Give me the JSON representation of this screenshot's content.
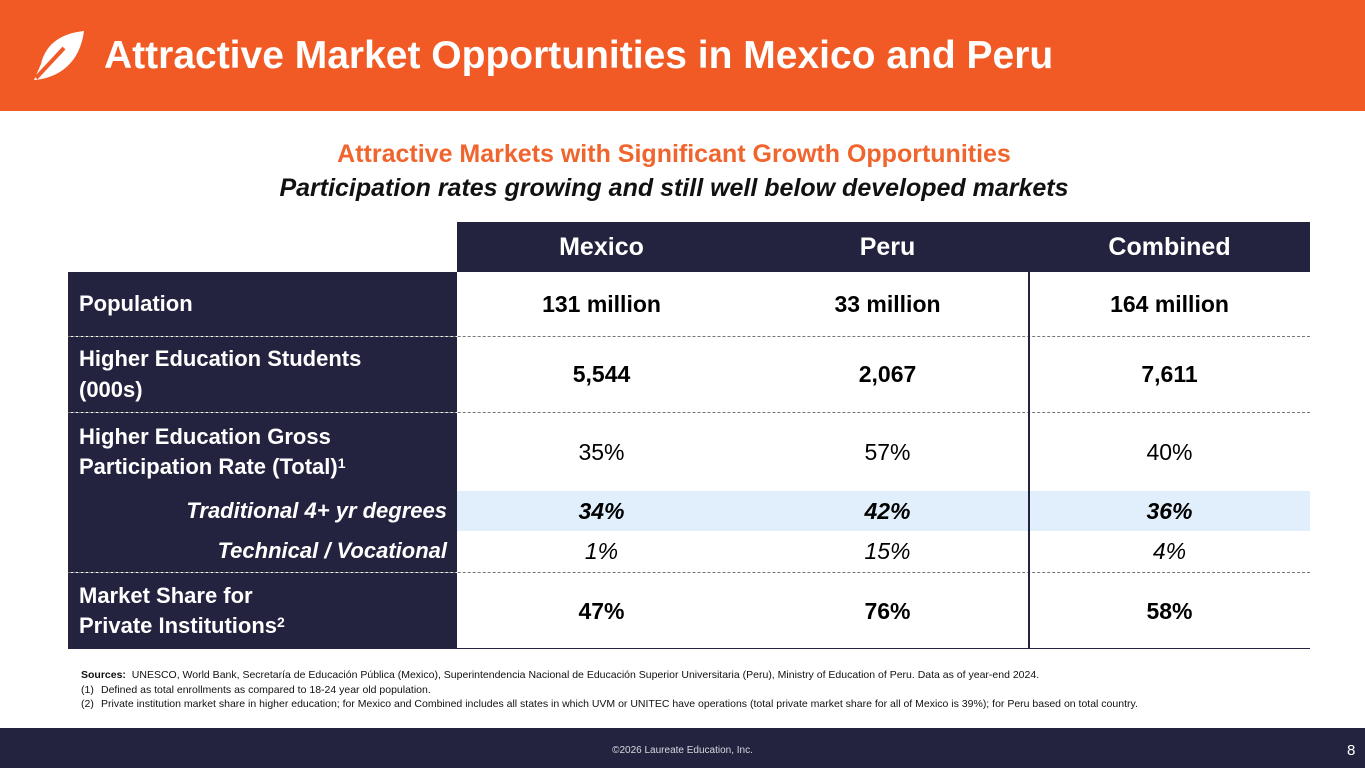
{
  "header": {
    "title": "Attractive Market Opportunities in Mexico and Peru"
  },
  "subtitle": {
    "line1": "Attractive Markets with Significant Growth Opportunities",
    "line2": "Participation rates growing and still well below developed markets"
  },
  "table": {
    "columns": [
      "Mexico",
      "Peru",
      "Combined"
    ],
    "rows": [
      {
        "label_line1": "Population",
        "values": [
          "131 million",
          "33 million",
          "164 million"
        ]
      },
      {
        "label_line1": "Higher Education Students",
        "label_line2": "(000s)",
        "values": [
          "5,544",
          "2,067",
          "7,611"
        ]
      },
      {
        "label_line1": "Higher Education Gross",
        "label_line2": "Participation Rate (Total)",
        "label_sup": "1",
        "values": [
          "35%",
          "57%",
          "40%"
        ]
      },
      {
        "label_line1": "Traditional 4+ yr degrees",
        "values": [
          "34%",
          "42%",
          "36%"
        ]
      },
      {
        "label_line1": "Technical / Vocational",
        "values": [
          "1%",
          "15%",
          "4%"
        ]
      },
      {
        "label_line1": "Market Share for",
        "label_line2": "Private Institutions",
        "label_sup": "2",
        "values": [
          "47%",
          "76%",
          "58%"
        ]
      }
    ]
  },
  "notes": {
    "sources_label": "Sources:",
    "sources_text": "UNESCO, World Bank, Secretaría de Educación Pública (Mexico), Superintendencia Nacional de Educación Superior Universitaria (Peru), Ministry of Education of Peru.  Data as of year-end 2024.",
    "n1_num": "(1)",
    "n1_text": "Defined as total enrollments as compared to 18-24 year old population.",
    "n2_num": "(2)",
    "n2_text": "Private institution market share in higher education; for Mexico and Combined includes all states in which UVM or UNITEC have operations (total private market share for all of Mexico is 39%); for Peru based on total country."
  },
  "footer": {
    "copyright": "©2026 Laureate Education, Inc.",
    "page_number": "8"
  },
  "colors": {
    "orange": "#f15a24",
    "navy": "#23233f",
    "highlight": "#e1eefb"
  },
  "icons": {
    "logo": "laureate-leaf-logo"
  }
}
